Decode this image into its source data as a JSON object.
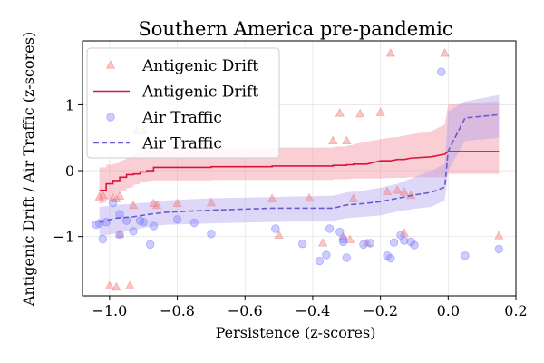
{
  "chart_data": {
    "type": "scatter",
    "title": "Southern America pre-pandemic",
    "xlabel": "Persistence (z-scores)",
    "ylabel": "Antigenic Drift / Air Traffic (z-scores)",
    "xlim": [
      -1.08,
      0.2
    ],
    "ylim": [
      -1.9,
      1.97
    ],
    "xticks": [
      -1.0,
      -0.8,
      -0.6,
      -0.4,
      -0.2,
      0.0,
      0.2
    ],
    "xtick_labels": [
      "−1.0",
      "−0.8",
      "−0.6",
      "−0.4",
      "−0.2",
      "0.0",
      "0.2"
    ],
    "yticks": [
      -1,
      0,
      1
    ],
    "ytick_labels": [
      "−1",
      "0",
      "1"
    ],
    "grid": true,
    "legend": {
      "placement": "top-left",
      "entries": [
        {
          "label": "Antigenic Drift",
          "kind": "scatter",
          "marker": "triangle"
        },
        {
          "label": "Antigenic Drift",
          "kind": "line",
          "style": "solid"
        },
        {
          "label": "Air Traffic",
          "kind": "scatter",
          "marker": "circle"
        },
        {
          "label": "Air Traffic",
          "kind": "line",
          "style": "dashed"
        }
      ]
    },
    "colors": {
      "drift_points": "#f08080",
      "drift_line": "#dc143c",
      "drift_band": "#f08090",
      "air_points": "#8080ff",
      "air_line": "#6a5acd",
      "air_band": "#b0a0ee"
    },
    "series": [
      {
        "name": "Antigenic Drift",
        "kind": "scatter",
        "x": [
          -1.03,
          -1.02,
          -1.0,
          -0.99,
          -0.98,
          -0.98,
          -0.97,
          -0.97,
          -0.94,
          -0.93,
          -0.92,
          -0.9,
          -0.87,
          -0.86,
          -0.8,
          -0.7,
          -0.52,
          -0.5,
          -0.41,
          -0.37,
          -0.34,
          -0.32,
          -0.31,
          -0.3,
          -0.29,
          -0.28,
          -0.26,
          -0.24,
          -0.2,
          -0.18,
          -0.17,
          -0.15,
          -0.13,
          -0.13,
          -0.11,
          -0.01,
          0.15
        ],
        "y": [
          -0.4,
          -0.38,
          -1.75,
          -0.42,
          -1.77,
          -0.43,
          -0.97,
          -0.39,
          -1.75,
          -0.53,
          0.6,
          0.6,
          -0.5,
          -0.53,
          -0.5,
          -0.49,
          -0.43,
          -0.98,
          -0.42,
          -1.1,
          0.45,
          0.87,
          -1.01,
          0.45,
          -1.05,
          -0.43,
          0.86,
          -1.1,
          0.88,
          -0.32,
          1.78,
          -0.3,
          -0.33,
          -0.95,
          -0.38,
          1.78,
          -0.99
        ]
      },
      {
        "name": "Antigenic Drift",
        "kind": "line",
        "x": [
          -1.03,
          -1.01,
          -1.01,
          -0.99,
          -0.99,
          -0.97,
          -0.97,
          -0.95,
          -0.95,
          -0.93,
          -0.93,
          -0.91,
          -0.91,
          -0.89,
          -0.89,
          -0.87,
          -0.87,
          -0.7,
          -0.7,
          -0.52,
          -0.52,
          -0.34,
          -0.34,
          -0.3,
          -0.3,
          -0.28,
          -0.28,
          -0.24,
          -0.2,
          -0.17,
          -0.15,
          -0.13,
          -0.11,
          -0.05,
          -0.01,
          0.0,
          0.15
        ],
        "y": [
          -0.3,
          -0.3,
          -0.2,
          -0.2,
          -0.15,
          -0.15,
          -0.1,
          -0.1,
          -0.06,
          -0.06,
          -0.05,
          -0.05,
          -0.02,
          -0.02,
          0.0,
          0.0,
          0.05,
          0.05,
          0.06,
          0.06,
          0.07,
          0.07,
          0.08,
          0.08,
          0.09,
          0.09,
          0.1,
          0.1,
          0.15,
          0.15,
          0.17,
          0.17,
          0.19,
          0.21,
          0.25,
          0.29,
          0.29
        ],
        "upper": [
          0.05,
          0.05,
          0.09,
          0.09,
          0.1,
          0.12,
          0.14,
          0.18,
          0.2,
          0.22,
          0.25,
          0.27,
          0.28,
          0.29,
          0.3,
          0.31,
          0.32,
          0.33,
          0.34,
          0.34,
          0.35,
          0.35,
          0.36,
          0.37,
          0.38,
          0.39,
          0.4,
          0.44,
          0.48,
          0.5,
          0.51,
          0.53,
          0.55,
          0.6,
          0.7,
          1.0,
          1.05
        ],
        "lower": [
          -0.5,
          -0.48,
          -0.45,
          -0.42,
          -0.38,
          -0.35,
          -0.32,
          -0.3,
          -0.27,
          -0.25,
          -0.22,
          -0.2,
          -0.18,
          -0.17,
          -0.16,
          -0.15,
          -0.15,
          -0.15,
          -0.14,
          -0.14,
          -0.14,
          -0.14,
          -0.13,
          -0.13,
          -0.13,
          -0.12,
          -0.12,
          -0.12,
          -0.12,
          -0.11,
          -0.11,
          -0.11,
          -0.1,
          -0.1,
          -0.1,
          -0.05,
          -0.05
        ]
      },
      {
        "name": "Air Traffic",
        "kind": "scatter",
        "x": [
          -1.04,
          -1.03,
          -1.02,
          -1.01,
          -0.99,
          -0.97,
          -0.97,
          -0.95,
          -0.93,
          -0.91,
          -0.9,
          -0.88,
          -0.87,
          -0.8,
          -0.75,
          -0.7,
          -0.51,
          -0.43,
          -0.38,
          -0.36,
          -0.35,
          -0.32,
          -0.31,
          -0.31,
          -0.3,
          -0.25,
          -0.23,
          -0.18,
          -0.17,
          -0.16,
          -0.14,
          -0.13,
          -0.11,
          -0.1,
          -0.02,
          0.05,
          0.15
        ],
        "y": [
          -0.82,
          -0.8,
          -1.04,
          -0.78,
          -0.49,
          -0.97,
          -0.66,
          -0.76,
          -0.92,
          -0.76,
          -0.78,
          -1.12,
          -0.84,
          -0.74,
          -0.79,
          -0.96,
          -0.88,
          -1.11,
          -1.37,
          -1.28,
          -0.88,
          -0.93,
          -1.04,
          -1.08,
          -1.32,
          -1.12,
          -1.1,
          -1.29,
          -1.33,
          -1.09,
          -0.98,
          -1.06,
          -1.08,
          -1.13,
          1.5,
          -1.29,
          -1.19
        ]
      },
      {
        "name": "Air Traffic",
        "kind": "line",
        "x": [
          -1.03,
          -0.98,
          -0.93,
          -0.88,
          -0.83,
          -0.7,
          -0.52,
          -0.34,
          -0.3,
          -0.25,
          -0.2,
          -0.15,
          -0.1,
          -0.05,
          -0.01,
          0.0,
          0.05,
          0.15
        ],
        "y": [
          -0.78,
          -0.72,
          -0.7,
          -0.66,
          -0.63,
          -0.6,
          -0.57,
          -0.57,
          -0.52,
          -0.5,
          -0.47,
          -0.42,
          -0.37,
          -0.33,
          -0.25,
          0.3,
          0.8,
          0.85
        ],
        "upper": [
          -0.55,
          -0.52,
          -0.5,
          -0.48,
          -0.45,
          -0.42,
          -0.4,
          -0.38,
          -0.33,
          -0.3,
          -0.26,
          -0.2,
          -0.1,
          0.0,
          0.1,
          0.9,
          1.05,
          1.15
        ],
        "lower": [
          -1.0,
          -0.95,
          -0.9,
          -0.85,
          -0.82,
          -0.8,
          -0.78,
          -0.76,
          -0.72,
          -0.7,
          -0.68,
          -0.62,
          -0.58,
          -0.55,
          -0.45,
          0.0,
          0.45,
          0.5
        ]
      }
    ]
  }
}
